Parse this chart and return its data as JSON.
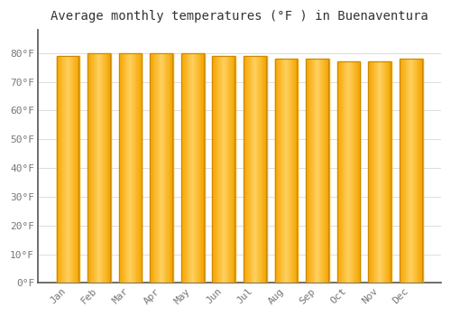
{
  "title": "Average monthly temperatures (°F ) in Buenaventura",
  "months": [
    "Jan",
    "Feb",
    "Mar",
    "Apr",
    "May",
    "Jun",
    "Jul",
    "Aug",
    "Sep",
    "Oct",
    "Nov",
    "Dec"
  ],
  "values": [
    79,
    80,
    80,
    80,
    80,
    79,
    79,
    78,
    78,
    77,
    77,
    78
  ],
  "bar_color_light": "#FFD060",
  "bar_color_dark": "#F5A500",
  "bar_edge_color": "#CC8800",
  "background_color": "#FFFFFF",
  "grid_color": "#DDDDDD",
  "ylim": [
    0,
    88
  ],
  "yticks": [
    0,
    10,
    20,
    30,
    40,
    50,
    60,
    70,
    80
  ],
  "ytick_labels": [
    "0°F",
    "10°F",
    "20°F",
    "30°F",
    "40°F",
    "50°F",
    "60°F",
    "70°F",
    "80°F"
  ],
  "title_fontsize": 10,
  "tick_fontsize": 8,
  "font_family": "monospace",
  "bar_width": 0.72
}
